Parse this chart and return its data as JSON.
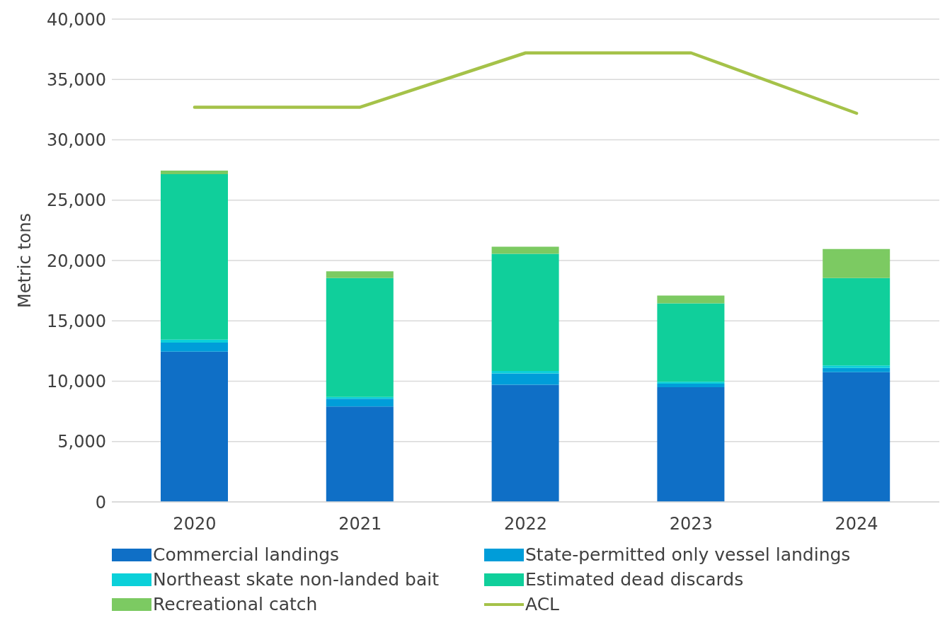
{
  "chart_data": {
    "type": "bar",
    "stacked": true,
    "ylabel": "Metric tons",
    "categories": [
      "2020",
      "2021",
      "2022",
      "2023",
      "2024"
    ],
    "series": [
      {
        "name": "Commercial landings",
        "color": "#0f6fc6",
        "values": [
          12450,
          7900,
          9700,
          9500,
          10750
        ]
      },
      {
        "name": "State-permitted only vessel landings",
        "color": "#009dd9",
        "values": [
          750,
          650,
          950,
          300,
          350
        ]
      },
      {
        "name": "Northeast skate non-landed bait",
        "color": "#0bd0d9",
        "values": [
          250,
          150,
          200,
          150,
          200
        ]
      },
      {
        "name": "Estimated dead discards",
        "color": "#10cf9b",
        "values": [
          13700,
          9850,
          9700,
          6500,
          7250
        ]
      },
      {
        "name": "Recreational catch",
        "color": "#7cca62",
        "values": [
          300,
          550,
          600,
          650,
          2400
        ]
      },
      {
        "name": "ACL",
        "type": "line",
        "color": "#a5c249",
        "values": [
          32700,
          32700,
          37200,
          37200,
          32200
        ]
      }
    ],
    "ylim": [
      0,
      40000
    ],
    "yticks": [
      0,
      {
        "value": 5000,
        "label": "5,000"
      },
      {
        "value": 10000,
        "label": "10,000"
      },
      {
        "value": 15000,
        "label": "15,000"
      },
      {
        "value": 20000,
        "label": "20,000"
      },
      {
        "value": 25000,
        "label": "25,000"
      },
      {
        "value": 30000,
        "label": "30,000"
      },
      {
        "value": 35000,
        "label": "35,000"
      },
      {
        "value": 40000,
        "label": "40,000"
      }
    ],
    "grid": "y",
    "legend": "bottom",
    "marker": "none",
    "line_style": "solid"
  }
}
